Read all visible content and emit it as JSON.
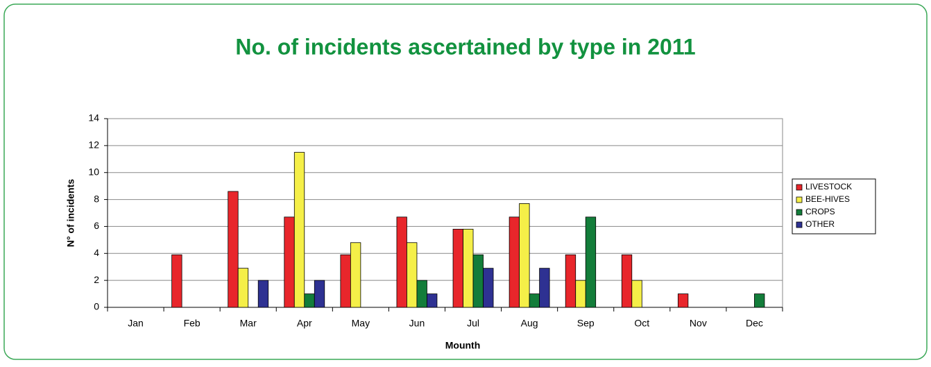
{
  "chart_data": {
    "type": "bar",
    "title": "No. of incidents ascertained by type in 2011",
    "x_label": "Mounth",
    "y_label": "N° of incidents",
    "categories": [
      "Jan",
      "Feb",
      "Mar",
      "Apr",
      "May",
      "Jun",
      "Jul",
      "Aug",
      "Sep",
      "Oct",
      "Nov",
      "Dec"
    ],
    "series": [
      {
        "name": "LIVESTOCK",
        "color": "#e8262b",
        "values": [
          0,
          3.9,
          8.6,
          6.7,
          3.9,
          6.7,
          5.8,
          6.7,
          3.9,
          3.9,
          1.0,
          0
        ]
      },
      {
        "name": "BEE-HIVES",
        "color": "#f5ef48",
        "values": [
          0,
          0,
          2.9,
          11.5,
          4.8,
          4.8,
          5.8,
          7.7,
          2.0,
          2.0,
          0,
          0
        ]
      },
      {
        "name": "CROPS",
        "color": "#137d3a",
        "values": [
          0,
          0,
          0,
          1.0,
          0,
          2.0,
          3.9,
          1.0,
          6.7,
          0,
          0,
          1.0
        ]
      },
      {
        "name": "OTHER",
        "color": "#2e3192",
        "values": [
          0,
          0,
          2.0,
          2.0,
          0,
          1.0,
          2.9,
          2.9,
          0,
          0,
          0,
          0
        ]
      }
    ],
    "ylim": [
      0,
      14
    ],
    "yticks": [
      0,
      2,
      4,
      6,
      8,
      10,
      12,
      14
    ],
    "grid": true,
    "legend": "right"
  }
}
